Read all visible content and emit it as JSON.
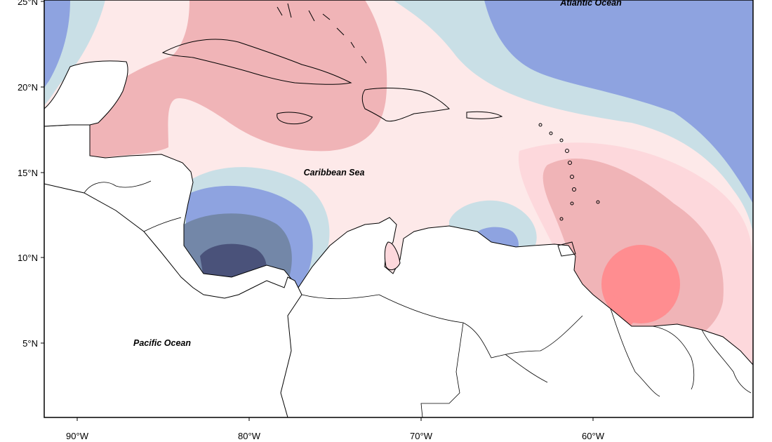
{
  "map": {
    "labels": {
      "atlantic": "Atlantic Ocean",
      "caribbean": "Caribbean Sea",
      "pacific": "Pacific Ocean"
    },
    "lat_ticks": [
      "25°N",
      "20°N",
      "15°N",
      "10°N",
      "5°N"
    ],
    "lon_ticks": [
      "90°W",
      "80°W",
      "70°W",
      "60°W"
    ],
    "colors": {
      "deep_blue": "#4a527a",
      "slate_blue": "#7387a8",
      "blue": "#8ea3e0",
      "light_blue": "#c9dfe6",
      "very_light_pink": "#fde9e9",
      "light_pink": "#fdd8dc",
      "pink": "#f0b4b7",
      "red": "#ff8d90",
      "land": "#ffffff"
    }
  }
}
